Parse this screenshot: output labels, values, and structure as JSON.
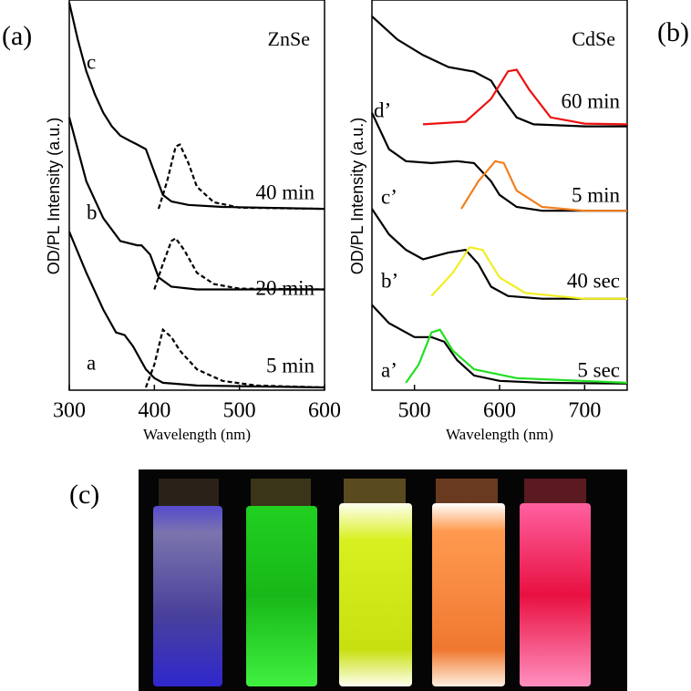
{
  "panel_labels": [
    "(a)",
    "(b)",
    "(c)"
  ],
  "chart_data": [
    {
      "type": "line",
      "title": "ZnSe",
      "xlabel": "Wavelength (nm)",
      "ylabel": "OD/PL Intensity (a.u.)",
      "xlim": [
        300,
        600
      ],
      "xticks": [
        300,
        400,
        500,
        600
      ],
      "ylim": [
        0,
        10
      ],
      "series": [
        {
          "name": "c",
          "color": "#000000",
          "style": "solid",
          "x": [
            300,
            310,
            320,
            330,
            340,
            350,
            360,
            370,
            380,
            390,
            400,
            410,
            420,
            440,
            480,
            600
          ],
          "values": [
            10.0,
            9.05,
            8.23,
            7.64,
            7.16,
            6.81,
            6.57,
            6.45,
            6.34,
            6.22,
            5.63,
            5.04,
            4.87,
            4.78,
            4.73,
            4.68
          ]
        },
        {
          "name": "40 min",
          "color": "#000000",
          "style": "dashed",
          "x": [
            405,
            415,
            425,
            430,
            440,
            450,
            470,
            500,
            600
          ],
          "values": [
            4.68,
            5.39,
            6.29,
            6.34,
            5.86,
            5.25,
            4.85,
            4.71,
            4.68
          ]
        },
        {
          "name": "b",
          "color": "#000000",
          "style": "solid",
          "x": [
            300,
            320,
            340,
            360,
            380,
            385,
            395,
            405,
            420,
            450,
            600
          ],
          "values": [
            7.04,
            5.39,
            4.44,
            3.85,
            3.74,
            3.74,
            3.5,
            2.91,
            2.67,
            2.6,
            2.6
          ]
        },
        {
          "name": "20 min",
          "color": "#000000",
          "style": "dashed",
          "x": [
            400,
            410,
            420,
            425,
            435,
            450,
            470,
            500,
            600
          ],
          "values": [
            2.6,
            3.26,
            3.85,
            3.92,
            3.62,
            3.03,
            2.74,
            2.62,
            2.6
          ]
        },
        {
          "name": "a",
          "color": "#000000",
          "style": "solid",
          "x": [
            300,
            320,
            340,
            355,
            365,
            375,
            390,
            400,
            410,
            450,
            600
          ],
          "values": [
            4.09,
            3.03,
            2.08,
            1.49,
            1.42,
            1.13,
            0.54,
            0.31,
            0.19,
            0.12,
            0.07
          ]
        },
        {
          "name": "5 min",
          "color": "#000000",
          "style": "dashed",
          "x": [
            390,
            400,
            410,
            420,
            430,
            450,
            480,
            520,
            600
          ],
          "values": [
            0.07,
            0.66,
            1.56,
            1.37,
            1.02,
            0.54,
            0.24,
            0.12,
            0.07
          ]
        }
      ]
    },
    {
      "type": "line",
      "title": "CdSe",
      "xlabel": "Wavelength (nm)",
      "ylabel": "OD/PL Intensity (a.u.)",
      "xlim": [
        450,
        750
      ],
      "xticks": [
        500,
        600,
        700
      ],
      "ylim": [
        0,
        10
      ],
      "series": [
        {
          "name": "d’",
          "color": "#000000",
          "style": "solid",
          "x": [
            450,
            480,
            510,
            540,
            570,
            590,
            600,
            620,
            640,
            700,
            750
          ],
          "values": [
            9.65,
            9.05,
            8.65,
            8.34,
            8.22,
            7.99,
            7.64,
            7.04,
            6.86,
            6.81,
            6.81
          ]
        },
        {
          "name": "60 min",
          "color": "#ee1111",
          "style": "solid",
          "x": [
            510,
            560,
            590,
            610,
            620,
            635,
            660,
            700,
            750
          ],
          "values": [
            6.86,
            6.93,
            7.52,
            8.23,
            8.27,
            7.75,
            7.04,
            6.88,
            6.86
          ]
        },
        {
          "name": "c’",
          "color": "#000000",
          "style": "solid",
          "x": [
            450,
            470,
            490,
            520,
            550,
            570,
            590,
            600,
            620,
            650,
            750
          ],
          "values": [
            7.16,
            6.22,
            5.91,
            5.86,
            5.91,
            5.86,
            5.39,
            5.04,
            4.73,
            4.63,
            4.63
          ]
        },
        {
          "name": "5 min",
          "color": "#f08020",
          "style": "solid",
          "x": [
            555,
            575,
            595,
            605,
            620,
            650,
            700,
            750
          ],
          "values": [
            4.68,
            5.39,
            5.91,
            5.86,
            5.15,
            4.73,
            4.63,
            4.63
          ]
        },
        {
          "name": "b’",
          "color": "#000000",
          "style": "solid",
          "x": [
            450,
            470,
            490,
            510,
            540,
            560,
            575,
            590,
            610,
            650,
            750
          ],
          "values": [
            4.68,
            4.02,
            3.62,
            3.38,
            3.55,
            3.62,
            3.26,
            2.67,
            2.43,
            2.36,
            2.36
          ]
        },
        {
          "name": "40 sec",
          "color": "#f2ee20",
          "style": "solid",
          "x": [
            520,
            545,
            565,
            580,
            600,
            630,
            700,
            750
          ],
          "values": [
            2.43,
            3.03,
            3.69,
            3.62,
            2.91,
            2.51,
            2.36,
            2.36
          ]
        },
        {
          "name": "a’",
          "color": "#000000",
          "style": "solid",
          "x": [
            450,
            470,
            500,
            520,
            535,
            550,
            570,
            600,
            650,
            750
          ],
          "values": [
            2.2,
            1.73,
            1.37,
            1.37,
            1.25,
            0.78,
            0.38,
            0.24,
            0.19,
            0.17
          ]
        },
        {
          "name": "5 sec",
          "color": "#22e022",
          "style": "solid",
          "x": [
            490,
            505,
            520,
            530,
            545,
            570,
            620,
            750
          ],
          "values": [
            0.19,
            0.66,
            1.49,
            1.56,
            1.02,
            0.54,
            0.31,
            0.19
          ]
        }
      ]
    }
  ]
}
